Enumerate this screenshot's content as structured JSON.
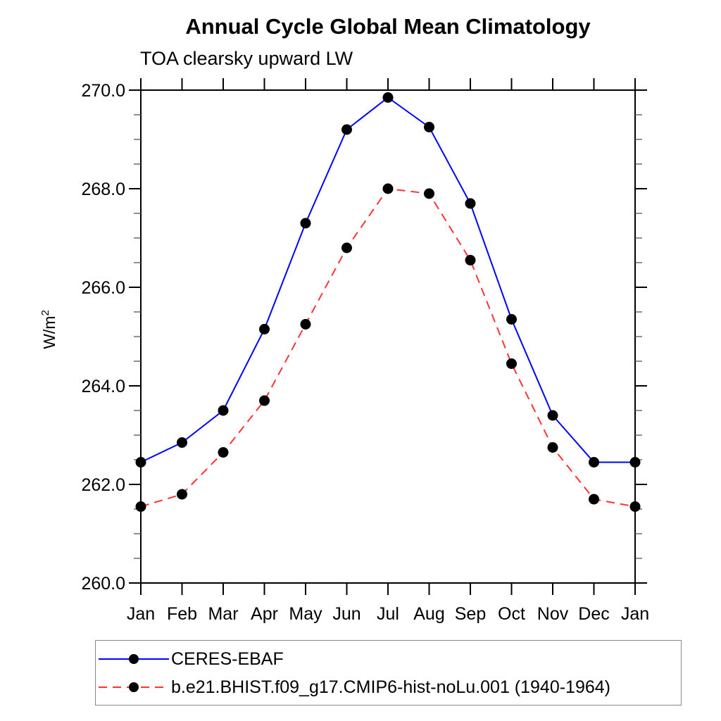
{
  "chart": {
    "title": "Annual Cycle Global Mean Climatology",
    "subtitle": "TOA clearsky upward LW",
    "ylabel_base": "W/m",
    "ylabel_exp": "2"
  },
  "chart_data": {
    "type": "line",
    "title": "Annual Cycle Global Mean Climatology",
    "subtitle": "TOA clearsky upward LW",
    "xlabel": "",
    "ylabel": "W/m²",
    "categories": [
      "Jan",
      "Feb",
      "Mar",
      "Apr",
      "May",
      "Jun",
      "Jul",
      "Aug",
      "Sep",
      "Oct",
      "Nov",
      "Dec",
      "Jan"
    ],
    "ylim": [
      260.0,
      270.0
    ],
    "y_major_ticks": [
      260.0,
      262.0,
      264.0,
      266.0,
      268.0,
      270.0
    ],
    "y_tick_labels": [
      "260.0",
      "262.0",
      "264.0",
      "266.0",
      "268.0",
      "270.0"
    ],
    "y_minor_step": 0.5,
    "grid": false,
    "legend_position": "bottom-left-box",
    "axis_color": "#000000",
    "minor_tick_color": "#555555",
    "marker_shape": "filled-circle",
    "series": [
      {
        "name": "CERES-EBAF",
        "color": "#0000ff",
        "style": "solid",
        "marker_color": "#000000",
        "values": [
          262.45,
          262.85,
          263.5,
          265.15,
          267.3,
          269.2,
          269.85,
          269.25,
          267.7,
          265.35,
          263.4,
          262.45,
          262.45
        ]
      },
      {
        "name": "b.e21.BHIST.f09_g17.CMIP6-hist-noLu.001 (1940-1964)",
        "color": "#ff3333",
        "style": "dashed",
        "marker_color": "#000000",
        "values": [
          261.55,
          261.8,
          262.65,
          263.7,
          265.25,
          266.8,
          268.0,
          267.9,
          266.55,
          264.45,
          262.75,
          261.7,
          261.55
        ]
      }
    ]
  }
}
